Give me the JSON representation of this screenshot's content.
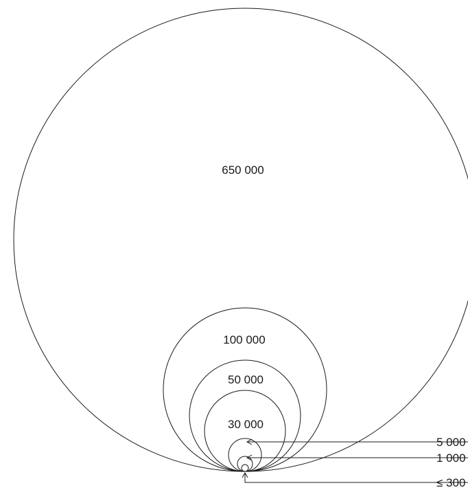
{
  "diagram": {
    "circles": [
      {
        "id": "c650000",
        "label": "650 000",
        "value": 650000
      },
      {
        "id": "c100000",
        "label": "100 000",
        "value": 100000
      },
      {
        "id": "c50000",
        "label": "50 000",
        "value": 50000
      },
      {
        "id": "c30000",
        "label": "30 000",
        "value": 30000
      },
      {
        "id": "c5000",
        "label": "5 000",
        "value": 5000
      },
      {
        "id": "c1000",
        "label": "1 000",
        "value": 1000
      },
      {
        "id": "c300",
        "label": "≤ 300",
        "value": 300
      }
    ],
    "stroke_color": "#1a1a1a",
    "background_color": "#ffffff"
  }
}
